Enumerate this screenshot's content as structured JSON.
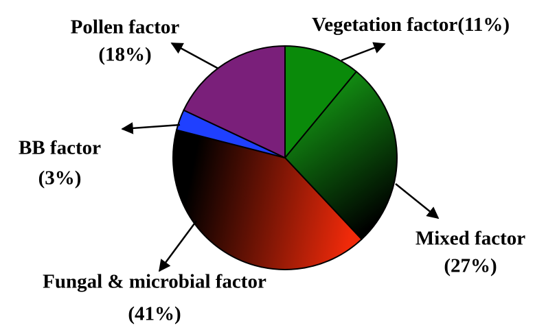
{
  "chart_data": {
    "type": "pie",
    "categories": [
      "Vegetation factor",
      "Mixed factor",
      "Fungal & microbial factor",
      "BB factor",
      "Pollen factor"
    ],
    "values": [
      11,
      27,
      41,
      3,
      18
    ],
    "value_labels": [
      "(11%)",
      "(27%)",
      "(41%)",
      "(3%)",
      "(18%)"
    ],
    "colors": [
      "#0a8a0a",
      [
        "#139313",
        "#000000"
      ],
      [
        "#f02a0a",
        "#000000"
      ],
      "#1f40ff",
      "#7a1f7a"
    ]
  }
}
